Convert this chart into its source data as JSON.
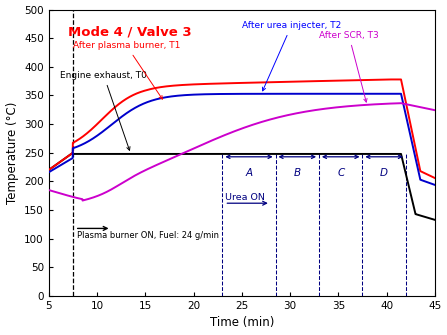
{
  "title": "Mode 4 / Valve 3",
  "xlabel": "Time (min)",
  "ylabel": "Temperature (°C)",
  "xlim": [
    5,
    45
  ],
  "ylim": [
    0,
    500
  ],
  "yticks": [
    0,
    50,
    100,
    150,
    200,
    250,
    300,
    350,
    400,
    450,
    500
  ],
  "xticks": [
    5,
    10,
    15,
    20,
    25,
    30,
    35,
    40,
    45
  ],
  "plasma_burner_on_x": 7.5,
  "dashed_lines_x": [
    23,
    28.5,
    33,
    37.5,
    42
  ],
  "sections": [
    "A",
    "B",
    "C",
    "D"
  ],
  "section_centers": [
    25.75,
    30.75,
    35.25,
    39.75
  ],
  "T0_color": "#000000",
  "T1_color": "#ff0000",
  "T2_color": "#0000cc",
  "T3_color": "#cc00cc",
  "arrow_color": "#000080",
  "title_color": "#ff0000",
  "title_fontsize": 9.5,
  "label_fontsize": 6.8,
  "annotation_fontsize": 6.5
}
